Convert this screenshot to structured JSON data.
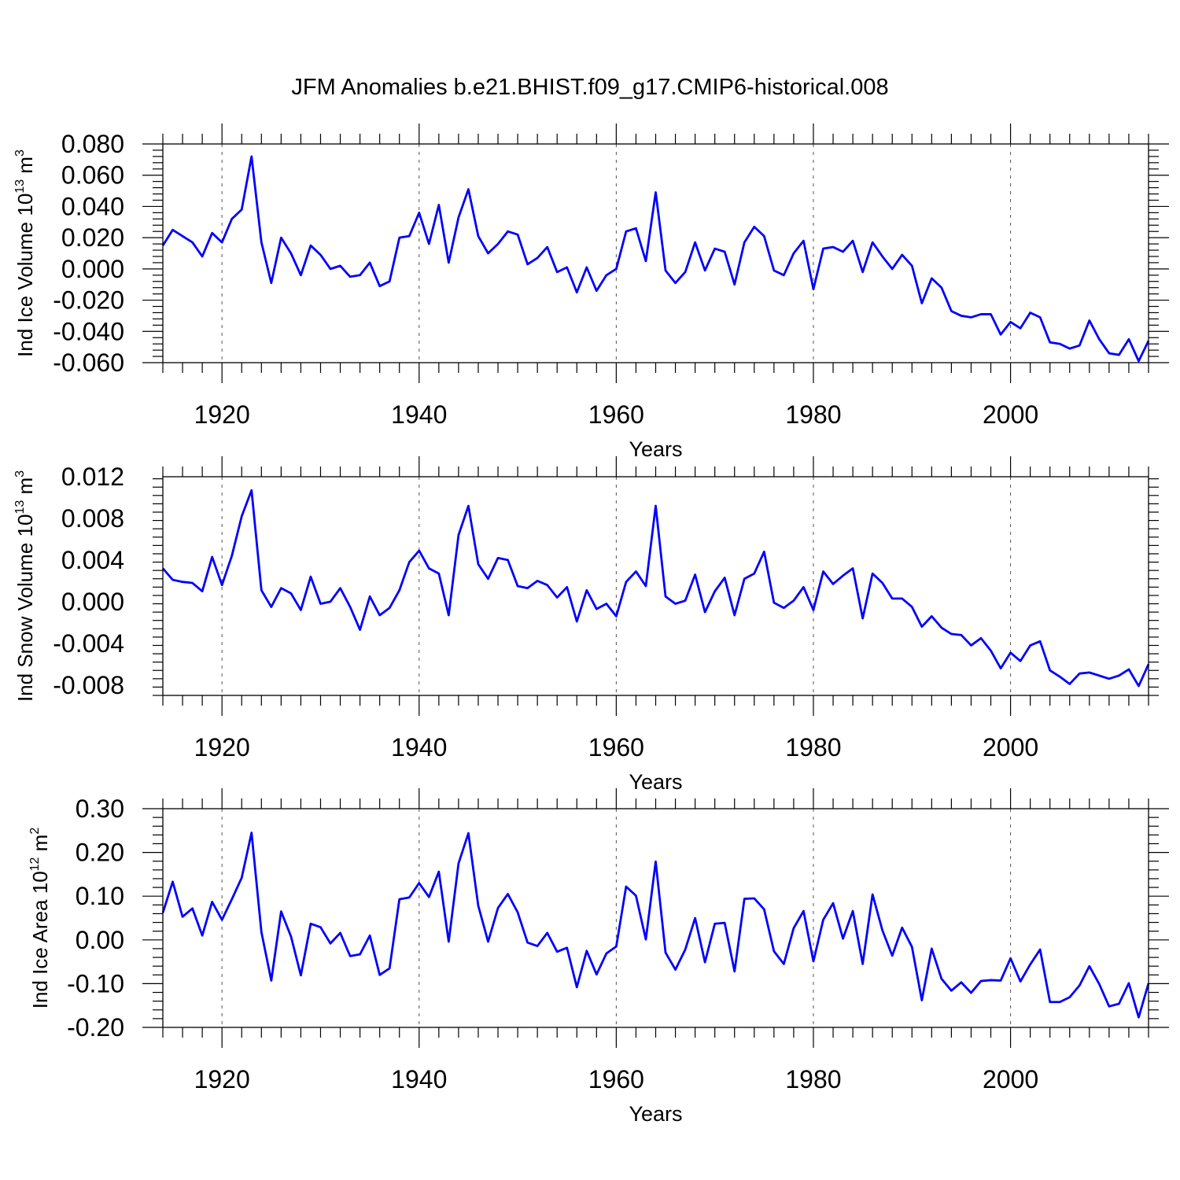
{
  "title": "JFM Anomalies b.e21.BHIST.f09_g17.CMIP6-historical.008",
  "line_color": "#0000ff",
  "chart_data": [
    {
      "type": "line",
      "xlabel": "Years",
      "ylabel": {
        "text": "Ind Ice Volume 10",
        "exp": "13",
        "unit_text": " m",
        "unit_exp": "3"
      },
      "x_ticks": [
        "1920",
        "1940",
        "1960",
        "1980",
        "2000"
      ],
      "y_ticks": [
        "0.080",
        "0.060",
        "0.040",
        "0.020",
        "0.000",
        "-0.020",
        "-0.040",
        "-0.060"
      ],
      "xlim": [
        1914,
        2014
      ],
      "ylim": [
        -0.06,
        0.08
      ],
      "grid": "vertical dashed at x ticks",
      "series": [
        {
          "x_start": 1914,
          "values": [
            0.015,
            0.025,
            0.021,
            0.017,
            0.008,
            0.023,
            0.017,
            0.032,
            0.038,
            0.072,
            0.017,
            -0.009,
            0.02,
            0.01,
            -0.004,
            0.015,
            0.009,
            0.0,
            0.002,
            -0.005,
            -0.004,
            0.004,
            -0.011,
            -0.008,
            0.02,
            0.021,
            0.036,
            0.016,
            0.041,
            0.004,
            0.033,
            0.051,
            0.021,
            0.01,
            0.016,
            0.024,
            0.022,
            0.003,
            0.007,
            0.014,
            -0.002,
            0.001,
            -0.015,
            0.001,
            -0.014,
            -0.004,
            0.0,
            0.024,
            0.026,
            0.005,
            0.049,
            -0.001,
            -0.009,
            -0.002,
            0.017,
            -0.001,
            0.013,
            0.011,
            -0.01,
            0.017,
            0.027,
            0.021,
            -0.001,
            -0.004,
            0.01,
            0.018,
            -0.013,
            0.013,
            0.014,
            0.011,
            0.018,
            -0.002,
            0.017,
            0.008,
            0.0,
            0.009,
            0.002,
            -0.022,
            -0.006,
            -0.012,
            -0.027,
            -0.03,
            -0.031,
            -0.029,
            -0.029,
            -0.042,
            -0.034,
            -0.038,
            -0.028,
            -0.031,
            -0.047,
            -0.048,
            -0.051,
            -0.049,
            -0.033,
            -0.045,
            -0.054,
            -0.055,
            -0.045,
            -0.059,
            -0.046
          ]
        }
      ]
    },
    {
      "type": "line",
      "xlabel": "Years",
      "ylabel": {
        "text": "Ind Snow Volume 10",
        "exp": "13",
        "unit_text": " m",
        "unit_exp": "3"
      },
      "x_ticks": [
        "1920",
        "1940",
        "1960",
        "1980",
        "2000"
      ],
      "y_ticks": [
        "0.012",
        "0.008",
        "0.004",
        "0.000",
        "-0.004",
        "-0.008"
      ],
      "xlim": [
        1914,
        2014
      ],
      "ylim": [
        -0.009,
        0.012
      ],
      "grid": "vertical dashed at x ticks",
      "series": [
        {
          "x_start": 1914,
          "values": [
            0.0032,
            0.0021,
            0.0019,
            0.0018,
            0.001,
            0.0043,
            0.0016,
            0.0044,
            0.0082,
            0.0107,
            0.0011,
            -0.0005,
            0.0013,
            0.0008,
            -0.0008,
            0.0024,
            -0.0002,
            0.0,
            0.0013,
            -0.0005,
            -0.0027,
            0.0005,
            -0.0013,
            -0.0006,
            0.0011,
            0.0038,
            0.0049,
            0.0032,
            0.0027,
            -0.0013,
            0.0064,
            0.0092,
            0.0036,
            0.0022,
            0.0042,
            0.004,
            0.0015,
            0.0013,
            0.002,
            0.0016,
            0.0004,
            0.0014,
            -0.0019,
            0.0011,
            -0.0007,
            -0.0002,
            -0.0014,
            0.0019,
            0.0029,
            0.0015,
            0.0092,
            0.0005,
            -0.0002,
            0.0001,
            0.0026,
            -0.001,
            0.001,
            0.0023,
            -0.0013,
            0.0022,
            0.0027,
            0.0048,
            -0.0001,
            -0.0006,
            0.0001,
            0.0014,
            -0.0008,
            0.0029,
            0.0017,
            0.0025,
            0.0032,
            -0.0016,
            0.0027,
            0.0018,
            0.0003,
            0.0003,
            -0.0005,
            -0.0024,
            -0.0014,
            -0.0025,
            -0.0031,
            -0.0032,
            -0.0042,
            -0.0035,
            -0.0047,
            -0.0064,
            -0.0049,
            -0.0057,
            -0.0042,
            -0.0038,
            -0.0066,
            -0.0072,
            -0.0079,
            -0.0069,
            -0.0068,
            -0.0071,
            -0.0074,
            -0.0071,
            -0.0065,
            -0.0081,
            -0.006
          ]
        }
      ]
    },
    {
      "type": "line",
      "xlabel": "Years",
      "ylabel": {
        "text": "Ind Ice Area 10",
        "exp": "12",
        "unit_text": " m",
        "unit_exp": "2"
      },
      "x_ticks": [
        "1920",
        "1940",
        "1960",
        "1980",
        "2000"
      ],
      "y_ticks": [
        "0.30",
        "0.20",
        "0.10",
        "0.00",
        "-0.10",
        "-0.20"
      ],
      "xlim": [
        1914,
        2014
      ],
      "ylim": [
        -0.2,
        0.3
      ],
      "grid": "vertical dashed at x ticks",
      "series": [
        {
          "x_start": 1914,
          "values": [
            0.062,
            0.133,
            0.053,
            0.072,
            0.01,
            0.087,
            0.046,
            0.093,
            0.142,
            0.245,
            0.018,
            -0.093,
            0.065,
            0.008,
            -0.081,
            0.037,
            0.029,
            -0.008,
            0.016,
            -0.037,
            -0.033,
            0.01,
            -0.08,
            -0.065,
            0.093,
            0.097,
            0.13,
            0.098,
            0.156,
            -0.004,
            0.175,
            0.244,
            0.078,
            -0.004,
            0.073,
            0.105,
            0.063,
            -0.006,
            -0.014,
            0.016,
            -0.027,
            -0.018,
            -0.108,
            -0.025,
            -0.079,
            -0.031,
            -0.015,
            0.122,
            0.101,
            0.001,
            0.179,
            -0.029,
            -0.068,
            -0.022,
            0.05,
            -0.051,
            0.037,
            0.039,
            -0.072,
            0.094,
            0.095,
            0.07,
            -0.026,
            -0.055,
            0.027,
            0.066,
            -0.049,
            0.046,
            0.084,
            0.003,
            0.066,
            -0.055,
            0.104,
            0.022,
            -0.036,
            0.028,
            -0.016,
            -0.138,
            -0.02,
            -0.089,
            -0.116,
            -0.097,
            -0.121,
            -0.094,
            -0.092,
            -0.093,
            -0.042,
            -0.095,
            -0.056,
            -0.022,
            -0.142,
            -0.142,
            -0.131,
            -0.104,
            -0.06,
            -0.101,
            -0.152,
            -0.146,
            -0.099,
            -0.177,
            -0.099
          ]
        }
      ]
    }
  ]
}
